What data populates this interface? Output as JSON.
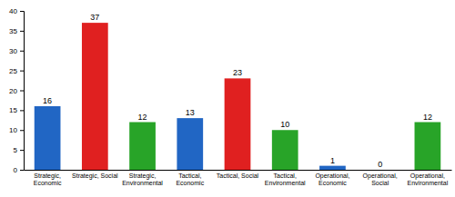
{
  "chart_data": {
    "type": "bar",
    "categories": [
      "Strategic,\nEconomic",
      "Strategic, Social",
      "Strategic,\nEnvironmental",
      "Tactical,\nEconomic",
      "Tactical, Social",
      "Tactical,\nEnvironmental",
      "Operational,\nEconomic",
      "Operational,\nSocial",
      "Operational,\nEnvironmental"
    ],
    "values": [
      16,
      37,
      12,
      13,
      23,
      10,
      1,
      0,
      12
    ],
    "colors": [
      "#2166c4",
      "#e02020",
      "#28a428",
      "#2166c4",
      "#e02020",
      "#28a428",
      "#2166c4",
      "#e02020",
      "#28a428"
    ],
    "ylim": [
      0,
      40
    ],
    "yticks": [
      0,
      5,
      10,
      15,
      20,
      25,
      30,
      35,
      40
    ],
    "data_labels": true,
    "grid": false
  }
}
